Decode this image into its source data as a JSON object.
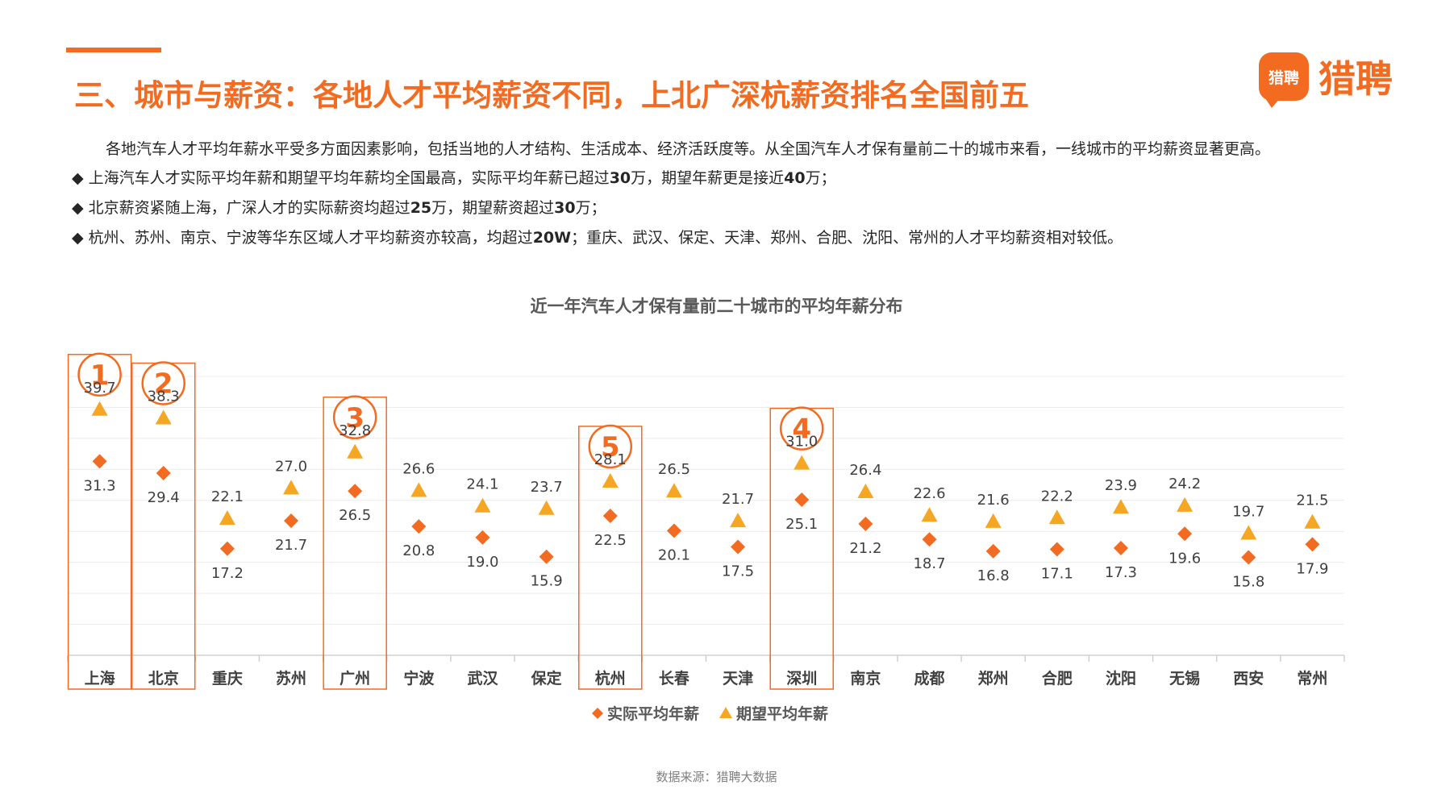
{
  "header": {
    "title": "三、城市与薪资：各地人才平均薪资不同，上北广深杭薪资排名全国前五",
    "logo_badge": "猎聘",
    "logo_text": "猎聘"
  },
  "summary": {
    "intro": "各地汽车人才平均年薪水平受多方面因素影响，包括当地的人才结构、生活成本、经济活跃度等。从全国汽车人才保有量前二十的城市来看，一线城市的平均薪资显著更高。",
    "bullets": [
      {
        "parts": [
          "上海汽车人才实际平均年薪和期望平均年薪均全国最高，实际平均年薪已超过",
          "30",
          "万，期望年薪更是接近",
          "40",
          "万；"
        ]
      },
      {
        "parts": [
          "北京薪资紧随上海，广深人才的实际薪资均超过",
          "25",
          "万，期望薪资超过",
          "30",
          "万；"
        ]
      },
      {
        "parts": [
          "杭州、苏州、南京、宁波等华东区域人才平均薪资亦较高，均超过",
          "20W",
          "；重庆、武汉、保定、天津、郑州、合肥、沈阳、常州的人才平均薪资相对较低。"
        ]
      }
    ],
    "bullet_symbol": "◆"
  },
  "chart_data": {
    "type": "scatter",
    "title": "近一年汽车人才保有量前二十城市的平均年薪分布",
    "categories": [
      "上海",
      "北京",
      "重庆",
      "苏州",
      "广州",
      "宁波",
      "武汉",
      "保定",
      "杭州",
      "长春",
      "天津",
      "深圳",
      "南京",
      "成都",
      "郑州",
      "合肥",
      "沈阳",
      "无锡",
      "西安",
      "常州"
    ],
    "series": [
      {
        "name": "实际平均年薪",
        "marker": "diamond",
        "color": "#f26b21",
        "values": [
          31.3,
          29.4,
          17.2,
          21.7,
          26.5,
          20.8,
          19.0,
          15.9,
          22.5,
          20.1,
          17.5,
          25.1,
          21.2,
          18.7,
          16.8,
          17.1,
          17.3,
          19.6,
          15.8,
          17.9
        ]
      },
      {
        "name": "期望平均年薪",
        "marker": "triangle",
        "color": "#f5a623",
        "values": [
          39.7,
          38.3,
          22.1,
          27.0,
          32.8,
          26.6,
          24.1,
          23.7,
          28.1,
          26.5,
          21.7,
          31.0,
          26.4,
          22.6,
          21.6,
          22.2,
          23.9,
          24.2,
          19.7,
          21.5
        ]
      }
    ],
    "ylim": [
      0,
      45
    ],
    "grid": true,
    "legend": "bottom-center",
    "highlights": [
      {
        "category": "上海",
        "rank": "1"
      },
      {
        "category": "北京",
        "rank": "2"
      },
      {
        "category": "广州",
        "rank": "3"
      },
      {
        "category": "深圳",
        "rank": "4"
      },
      {
        "category": "杭州",
        "rank": "5"
      }
    ],
    "highlight_color": "#f26b21"
  },
  "footer": {
    "source": "数据来源：猎聘大数据"
  }
}
